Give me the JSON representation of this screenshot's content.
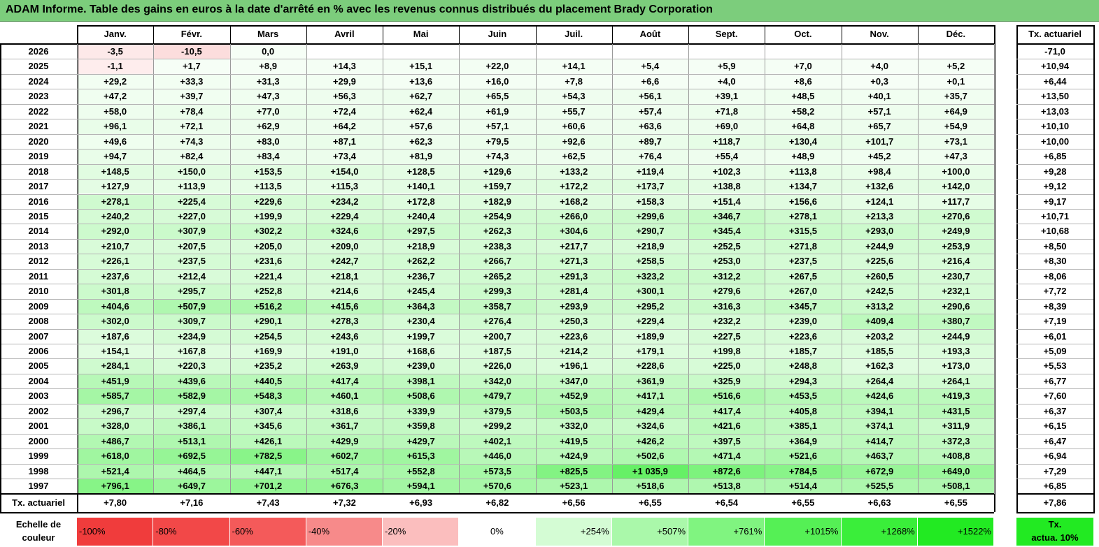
{
  "title": "ADAM Informe. Table des gains en euros à la date d'arrêté en % avec les revenus connus distribués du placement Brady Corporation",
  "months": [
    "Janv.",
    "Févr.",
    "Mars",
    "Avril",
    "Mai",
    "Juin",
    "Juil.",
    "Août",
    "Sept.",
    "Oct.",
    "Nov.",
    "Déc."
  ],
  "rate_header": "Tx. actuariel",
  "rows": [
    {
      "year": "2026",
      "values": [
        "-3,5",
        "-10,5",
        "0,0",
        "",
        "",
        "",
        "",
        "",
        "",
        "",
        "",
        ""
      ],
      "rate": "-71,0"
    },
    {
      "year": "2025",
      "values": [
        "-1,1",
        "+1,7",
        "+8,9",
        "+14,3",
        "+15,1",
        "+22,0",
        "+14,1",
        "+5,4",
        "+5,9",
        "+7,0",
        "+4,0",
        "+5,2"
      ],
      "rate": "+10,94"
    },
    {
      "year": "2024",
      "values": [
        "+29,2",
        "+33,3",
        "+31,3",
        "+29,9",
        "+13,6",
        "+16,0",
        "+7,8",
        "+6,6",
        "+4,0",
        "+8,6",
        "+0,3",
        "+0,1"
      ],
      "rate": "+6,44"
    },
    {
      "year": "2023",
      "values": [
        "+47,2",
        "+39,7",
        "+47,3",
        "+56,3",
        "+62,7",
        "+65,5",
        "+54,3",
        "+56,1",
        "+39,1",
        "+48,5",
        "+40,1",
        "+35,7"
      ],
      "rate": "+13,50"
    },
    {
      "year": "2022",
      "values": [
        "+58,0",
        "+78,4",
        "+77,0",
        "+72,4",
        "+62,4",
        "+61,9",
        "+55,7",
        "+57,4",
        "+71,8",
        "+58,2",
        "+57,1",
        "+64,9"
      ],
      "rate": "+13,03"
    },
    {
      "year": "2021",
      "values": [
        "+96,1",
        "+72,1",
        "+62,9",
        "+64,2",
        "+57,6",
        "+57,1",
        "+60,6",
        "+63,6",
        "+69,0",
        "+64,8",
        "+65,7",
        "+54,9"
      ],
      "rate": "+10,10"
    },
    {
      "year": "2020",
      "values": [
        "+49,6",
        "+74,3",
        "+83,0",
        "+87,1",
        "+62,3",
        "+79,5",
        "+92,6",
        "+89,7",
        "+118,7",
        "+130,4",
        "+101,7",
        "+73,1"
      ],
      "rate": "+10,00"
    },
    {
      "year": "2019",
      "values": [
        "+94,7",
        "+82,4",
        "+83,4",
        "+73,4",
        "+81,9",
        "+74,3",
        "+62,5",
        "+76,4",
        "+55,4",
        "+48,9",
        "+45,2",
        "+47,3"
      ],
      "rate": "+6,85"
    },
    {
      "year": "2018",
      "values": [
        "+148,5",
        "+150,0",
        "+153,5",
        "+154,0",
        "+128,5",
        "+129,6",
        "+133,2",
        "+119,4",
        "+102,3",
        "+113,8",
        "+98,4",
        "+100,0"
      ],
      "rate": "+9,28"
    },
    {
      "year": "2017",
      "values": [
        "+127,9",
        "+113,9",
        "+113,5",
        "+115,3",
        "+140,1",
        "+159,7",
        "+172,2",
        "+173,7",
        "+138,8",
        "+134,7",
        "+132,6",
        "+142,0"
      ],
      "rate": "+9,12"
    },
    {
      "year": "2016",
      "values": [
        "+278,1",
        "+225,4",
        "+229,6",
        "+234,2",
        "+172,8",
        "+182,9",
        "+168,2",
        "+158,3",
        "+151,4",
        "+156,6",
        "+124,1",
        "+117,7"
      ],
      "rate": "+9,17"
    },
    {
      "year": "2015",
      "values": [
        "+240,2",
        "+227,0",
        "+199,9",
        "+229,4",
        "+240,4",
        "+254,9",
        "+266,0",
        "+299,6",
        "+346,7",
        "+278,1",
        "+213,3",
        "+270,6"
      ],
      "rate": "+10,71"
    },
    {
      "year": "2014",
      "values": [
        "+292,0",
        "+307,9",
        "+302,2",
        "+324,6",
        "+297,5",
        "+262,3",
        "+304,6",
        "+290,7",
        "+345,4",
        "+315,5",
        "+293,0",
        "+249,9"
      ],
      "rate": "+10,68"
    },
    {
      "year": "2013",
      "values": [
        "+210,7",
        "+207,5",
        "+205,0",
        "+209,0",
        "+218,9",
        "+238,3",
        "+217,7",
        "+218,9",
        "+252,5",
        "+271,8",
        "+244,9",
        "+253,9"
      ],
      "rate": "+8,50"
    },
    {
      "year": "2012",
      "values": [
        "+226,1",
        "+237,5",
        "+231,6",
        "+242,7",
        "+262,2",
        "+266,7",
        "+271,3",
        "+258,5",
        "+253,0",
        "+237,5",
        "+225,6",
        "+216,4"
      ],
      "rate": "+8,30"
    },
    {
      "year": "2011",
      "values": [
        "+237,6",
        "+212,4",
        "+221,4",
        "+218,1",
        "+236,7",
        "+265,2",
        "+291,3",
        "+323,2",
        "+312,2",
        "+267,5",
        "+260,5",
        "+230,7"
      ],
      "rate": "+8,06"
    },
    {
      "year": "2010",
      "values": [
        "+301,8",
        "+295,7",
        "+252,8",
        "+214,6",
        "+245,4",
        "+299,3",
        "+281,4",
        "+300,1",
        "+279,6",
        "+267,0",
        "+242,5",
        "+232,1"
      ],
      "rate": "+7,72"
    },
    {
      "year": "2009",
      "values": [
        "+404,6",
        "+507,9",
        "+516,2",
        "+415,6",
        "+364,3",
        "+358,7",
        "+293,9",
        "+295,2",
        "+316,3",
        "+345,7",
        "+313,2",
        "+290,6"
      ],
      "rate": "+8,39"
    },
    {
      "year": "2008",
      "values": [
        "+302,0",
        "+309,7",
        "+290,1",
        "+278,3",
        "+230,4",
        "+276,4",
        "+250,3",
        "+229,4",
        "+232,2",
        "+239,0",
        "+409,4",
        "+380,7"
      ],
      "rate": "+7,19"
    },
    {
      "year": "2007",
      "values": [
        "+187,6",
        "+234,9",
        "+254,5",
        "+243,6",
        "+199,7",
        "+200,7",
        "+223,6",
        "+189,9",
        "+227,5",
        "+223,6",
        "+203,2",
        "+244,9"
      ],
      "rate": "+6,01"
    },
    {
      "year": "2006",
      "values": [
        "+154,1",
        "+167,8",
        "+169,9",
        "+191,0",
        "+168,6",
        "+187,5",
        "+214,2",
        "+179,1",
        "+199,8",
        "+185,7",
        "+185,5",
        "+193,3"
      ],
      "rate": "+5,09"
    },
    {
      "year": "2005",
      "values": [
        "+284,1",
        "+220,3",
        "+235,2",
        "+263,9",
        "+239,0",
        "+226,0",
        "+196,1",
        "+228,6",
        "+225,0",
        "+248,8",
        "+162,3",
        "+173,0"
      ],
      "rate": "+5,53"
    },
    {
      "year": "2004",
      "values": [
        "+451,9",
        "+439,6",
        "+440,5",
        "+417,4",
        "+398,1",
        "+342,0",
        "+347,0",
        "+361,9",
        "+325,9",
        "+294,3",
        "+264,4",
        "+264,1"
      ],
      "rate": "+6,77"
    },
    {
      "year": "2003",
      "values": [
        "+585,7",
        "+582,9",
        "+548,3",
        "+460,1",
        "+508,6",
        "+479,7",
        "+452,9",
        "+417,1",
        "+516,6",
        "+453,5",
        "+424,6",
        "+419,3"
      ],
      "rate": "+7,60"
    },
    {
      "year": "2002",
      "values": [
        "+296,7",
        "+297,4",
        "+307,4",
        "+318,6",
        "+339,9",
        "+379,5",
        "+503,5",
        "+429,4",
        "+417,4",
        "+405,8",
        "+394,1",
        "+431,5"
      ],
      "rate": "+6,37"
    },
    {
      "year": "2001",
      "values": [
        "+328,0",
        "+386,1",
        "+345,6",
        "+361,7",
        "+359,8",
        "+299,2",
        "+332,0",
        "+324,6",
        "+421,6",
        "+385,1",
        "+374,1",
        "+311,9"
      ],
      "rate": "+6,15"
    },
    {
      "year": "2000",
      "values": [
        "+486,7",
        "+513,1",
        "+426,1",
        "+429,9",
        "+429,7",
        "+402,1",
        "+419,5",
        "+426,2",
        "+397,5",
        "+364,9",
        "+414,7",
        "+372,3"
      ],
      "rate": "+6,47"
    },
    {
      "year": "1999",
      "values": [
        "+618,0",
        "+692,5",
        "+782,5",
        "+602,7",
        "+615,3",
        "+446,0",
        "+424,9",
        "+502,6",
        "+471,4",
        "+521,6",
        "+463,7",
        "+408,8"
      ],
      "rate": "+6,94"
    },
    {
      "year": "1998",
      "values": [
        "+521,4",
        "+464,5",
        "+447,1",
        "+517,4",
        "+552,8",
        "+573,5",
        "+825,5",
        "+1 035,9",
        "+872,6",
        "+784,5",
        "+672,9",
        "+649,0"
      ],
      "rate": "+7,29"
    },
    {
      "year": "1997",
      "values": [
        "+796,1",
        "+649,7",
        "+701,2",
        "+676,3",
        "+594,1",
        "+570,6",
        "+523,1",
        "+518,6",
        "+513,8",
        "+514,4",
        "+525,5",
        "+508,1"
      ],
      "rate": "+6,85"
    }
  ],
  "footer": {
    "label": "Tx. actuariel",
    "values": [
      "+7,80",
      "+7,16",
      "+7,43",
      "+7,32",
      "+6,93",
      "+6,82",
      "+6,56",
      "+6,55",
      "+6,54",
      "+6,55",
      "+6,63",
      "+6,55"
    ],
    "rate": "+7,86"
  },
  "scale": {
    "label_line1": "Echelle de",
    "label_line2": "couleur",
    "steps": [
      {
        "text": "-100%",
        "color": "#f03c3c"
      },
      {
        "text": "-80%",
        "color": "#f24848"
      },
      {
        "text": "-60%",
        "color": "#f45a5a"
      },
      {
        "text": "-40%",
        "color": "#f78a8a"
      },
      {
        "text": "-20%",
        "color": "#fbbebe"
      },
      {
        "text": "0%",
        "color": "#ffffff"
      },
      {
        "text": "+254%",
        "color": "#d4fcd4"
      },
      {
        "text": "+507%",
        "color": "#aaf8aa"
      },
      {
        "text": "+761%",
        "color": "#80f480"
      },
      {
        "text": "+1015%",
        "color": "#55f055"
      },
      {
        "text": "+1268%",
        "color": "#3aee3a"
      },
      {
        "text": "+1522%",
        "color": "#22ea22"
      }
    ],
    "rate_line1": "Tx.",
    "rate_line2": "actua. 10%",
    "rate_color": "#22ea22"
  }
}
